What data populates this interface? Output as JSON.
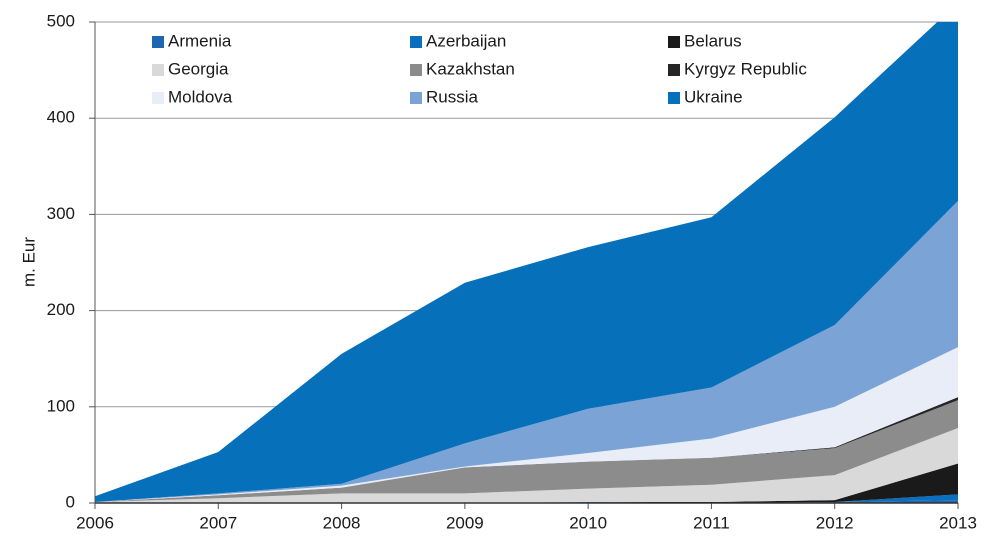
{
  "chart_data": {
    "type": "stacked_area",
    "y_label": "m. Eur",
    "x": [
      2006,
      2007,
      2008,
      2009,
      2010,
      2011,
      2012,
      2013
    ],
    "xlim": [
      2006,
      2013
    ],
    "xticks": [
      2006,
      2007,
      2008,
      2009,
      2010,
      2011,
      2012,
      2013
    ],
    "ylim": [
      0,
      500
    ],
    "yticks": [
      0,
      100,
      200,
      300,
      400,
      500
    ],
    "grid": true,
    "legend": "top",
    "series": [
      {
        "name": "Armenia",
        "color": "#1f66b0",
        "values": [
          0,
          0,
          0,
          0,
          1,
          0,
          1,
          3
        ]
      },
      {
        "name": "Azerbaijan",
        "color": "#0a6fbd",
        "values": [
          0,
          0,
          0,
          0,
          0,
          0,
          0,
          6
        ]
      },
      {
        "name": "Belarus",
        "color": "#1a1a1a",
        "values": [
          0,
          0,
          0,
          0,
          0,
          1,
          2,
          32
        ]
      },
      {
        "name": "Georgia",
        "color": "#d9d9d9",
        "values": [
          1,
          5,
          10,
          10,
          14,
          18,
          26,
          37
        ]
      },
      {
        "name": "Kazakhstan",
        "color": "#8c8c8c",
        "values": [
          0,
          3,
          6,
          27,
          28,
          28,
          28,
          29
        ]
      },
      {
        "name": "Kyrgyz Republic",
        "color": "#262626",
        "values": [
          0,
          0,
          0,
          0,
          0,
          0,
          1,
          3
        ]
      },
      {
        "name": "Moldova",
        "color": "#e9edf7",
        "values": [
          0,
          1,
          2,
          1,
          9,
          20,
          42,
          52
        ]
      },
      {
        "name": "Russia",
        "color": "#7ba3d6",
        "values": [
          0,
          1,
          2,
          24,
          46,
          53,
          85,
          152
        ]
      },
      {
        "name": "Ukraine",
        "color": "#0670ba",
        "values": [
          6,
          43,
          135,
          167,
          168,
          177,
          216,
          206
        ]
      }
    ]
  }
}
